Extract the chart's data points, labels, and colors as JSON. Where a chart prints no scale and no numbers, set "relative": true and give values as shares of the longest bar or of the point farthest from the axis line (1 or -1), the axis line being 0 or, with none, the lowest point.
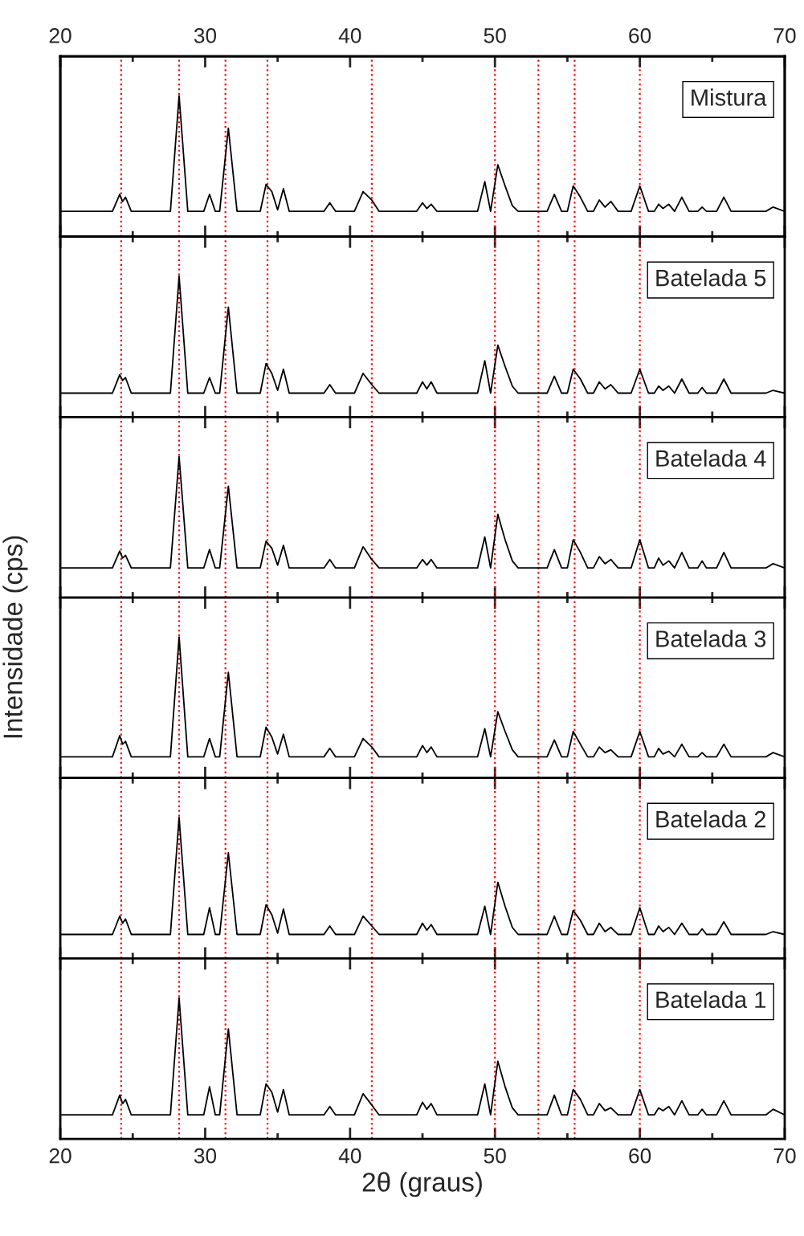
{
  "chart_data": [
    {
      "type": "line",
      "relative": true,
      "xlim": [
        20,
        70
      ],
      "xticks": [
        20,
        30,
        40,
        50,
        60,
        70
      ],
      "x2lim": [
        20,
        70
      ],
      "x2ticks": [
        20,
        30,
        40,
        50,
        60,
        70
      ],
      "tick_labels": false,
      "annotations": [
        "Mistura"
      ],
      "ref_lines": [
        {
          "axis": "x",
          "value": 24.2,
          "color": "#ff0000",
          "line_style": "dotted"
        },
        {
          "axis": "x",
          "value": 28.2,
          "color": "#ff0000",
          "line_style": "dotted"
        },
        {
          "axis": "x",
          "value": 31.4,
          "color": "#ff0000",
          "line_style": "dotted"
        },
        {
          "axis": "x",
          "value": 34.3,
          "color": "#ff0000",
          "line_style": "dotted"
        },
        {
          "axis": "x",
          "value": 41.5,
          "color": "#ff0000",
          "line_style": "dotted"
        },
        {
          "axis": "x",
          "value": 50.0,
          "color": "#ff0000",
          "line_style": "dotted"
        },
        {
          "axis": "x",
          "value": 53.0,
          "color": "#ff0000",
          "line_style": "dotted"
        },
        {
          "axis": "x",
          "value": 55.5,
          "color": "#ff0000",
          "line_style": "dotted"
        },
        {
          "axis": "x",
          "value": 60.0,
          "color": "#ff0000",
          "line_style": "dotted"
        }
      ],
      "x": [
        20,
        23.6,
        24.1,
        24.3,
        24.5,
        24.9,
        27.6,
        28.2,
        28.8,
        29.9,
        30.3,
        30.7,
        31.0,
        31.6,
        32.2,
        33.8,
        34.2,
        34.6,
        35.0,
        35.4,
        35.8,
        38.2,
        38.6,
        39.0,
        40.3,
        40.9,
        41.5,
        42.0,
        44.6,
        45.0,
        45.3,
        45.6,
        46.0,
        48.8,
        49.3,
        49.7,
        50.2,
        50.7,
        51.2,
        51.6,
        53.6,
        54.1,
        54.6,
        55.0,
        55.4,
        55.9,
        56.4,
        56.8,
        57.2,
        57.6,
        58.0,
        58.5,
        59.4,
        60.0,
        60.6,
        61.0,
        61.3,
        61.6,
        62.0,
        62.4,
        62.9,
        63.4,
        64.0,
        64.3,
        64.6,
        65.3,
        65.8,
        66.3,
        68.7,
        69.2,
        70
      ],
      "series": [
        {
          "color": "#000000",
          "values": [
            0.18,
            0.18,
            0.3,
            0.25,
            0.28,
            0.18,
            0.18,
            1.0,
            0.18,
            0.18,
            0.3,
            0.18,
            0.18,
            0.77,
            0.18,
            0.18,
            0.37,
            0.32,
            0.19,
            0.34,
            0.18,
            0.18,
            0.24,
            0.18,
            0.18,
            0.32,
            0.26,
            0.18,
            0.18,
            0.24,
            0.2,
            0.23,
            0.18,
            0.18,
            0.39,
            0.18,
            0.51,
            0.36,
            0.22,
            0.18,
            0.18,
            0.3,
            0.18,
            0.18,
            0.36,
            0.28,
            0.18,
            0.18,
            0.26,
            0.21,
            0.25,
            0.18,
            0.18,
            0.36,
            0.18,
            0.18,
            0.23,
            0.2,
            0.23,
            0.18,
            0.28,
            0.18,
            0.18,
            0.21,
            0.18,
            0.18,
            0.28,
            0.18,
            0.18,
            0.21,
            0.18
          ]
        }
      ]
    },
    {
      "type": "line",
      "relative": true,
      "xlim": [
        20,
        70
      ],
      "xticks": [
        20,
        30,
        40,
        50,
        60,
        70
      ],
      "tick_labels": false,
      "annotations": [
        "Batelada 5"
      ],
      "ref_lines": [
        {
          "axis": "x",
          "value": 24.2,
          "color": "#ff0000",
          "line_style": "dotted"
        },
        {
          "axis": "x",
          "value": 28.2,
          "color": "#ff0000",
          "line_style": "dotted"
        },
        {
          "axis": "x",
          "value": 31.4,
          "color": "#ff0000",
          "line_style": "dotted"
        },
        {
          "axis": "x",
          "value": 34.3,
          "color": "#ff0000",
          "line_style": "dotted"
        },
        {
          "axis": "x",
          "value": 41.5,
          "color": "#ff0000",
          "line_style": "dotted"
        },
        {
          "axis": "x",
          "value": 50.0,
          "color": "#ff0000",
          "line_style": "dotted"
        },
        {
          "axis": "x",
          "value": 53.0,
          "color": "#ff0000",
          "line_style": "dotted"
        },
        {
          "axis": "x",
          "value": 55.5,
          "color": "#ff0000",
          "line_style": "dotted"
        },
        {
          "axis": "x",
          "value": 60.0,
          "color": "#ff0000",
          "line_style": "dotted"
        }
      ],
      "x": [
        20,
        23.6,
        24.1,
        24.3,
        24.5,
        24.9,
        27.6,
        28.2,
        28.8,
        29.9,
        30.3,
        30.7,
        31.0,
        31.6,
        32.2,
        33.8,
        34.2,
        34.6,
        35.0,
        35.4,
        35.8,
        38.2,
        38.6,
        39.0,
        40.3,
        40.9,
        41.5,
        42.0,
        44.6,
        45.0,
        45.3,
        45.6,
        46.0,
        48.8,
        49.3,
        49.7,
        50.2,
        50.7,
        51.2,
        51.6,
        53.6,
        54.1,
        54.6,
        55.0,
        55.4,
        55.9,
        56.4,
        56.8,
        57.2,
        57.6,
        58.0,
        58.5,
        59.4,
        60.0,
        60.6,
        61.0,
        61.3,
        61.6,
        62.0,
        62.4,
        62.9,
        63.4,
        64.0,
        64.3,
        64.6,
        65.3,
        65.8,
        66.3,
        68.7,
        69.2,
        70
      ],
      "series": [
        {
          "color": "#000000",
          "values": [
            0.17,
            0.17,
            0.3,
            0.26,
            0.28,
            0.17,
            0.17,
            1.0,
            0.17,
            0.17,
            0.28,
            0.17,
            0.17,
            0.78,
            0.17,
            0.17,
            0.38,
            0.31,
            0.19,
            0.34,
            0.17,
            0.17,
            0.23,
            0.17,
            0.17,
            0.31,
            0.23,
            0.17,
            0.17,
            0.25,
            0.2,
            0.25,
            0.17,
            0.17,
            0.4,
            0.17,
            0.51,
            0.36,
            0.22,
            0.17,
            0.17,
            0.29,
            0.17,
            0.17,
            0.34,
            0.27,
            0.17,
            0.17,
            0.25,
            0.2,
            0.23,
            0.17,
            0.17,
            0.34,
            0.17,
            0.17,
            0.22,
            0.19,
            0.22,
            0.17,
            0.27,
            0.17,
            0.17,
            0.21,
            0.17,
            0.17,
            0.27,
            0.17,
            0.17,
            0.19,
            0.17
          ]
        }
      ]
    },
    {
      "type": "line",
      "relative": true,
      "xlim": [
        20,
        70
      ],
      "xticks": [
        20,
        30,
        40,
        50,
        60,
        70
      ],
      "tick_labels": false,
      "annotations": [
        "Batelada 4"
      ],
      "ref_lines": [
        {
          "axis": "x",
          "value": 24.2,
          "color": "#ff0000",
          "line_style": "dotted"
        },
        {
          "axis": "x",
          "value": 28.2,
          "color": "#ff0000",
          "line_style": "dotted"
        },
        {
          "axis": "x",
          "value": 31.4,
          "color": "#ff0000",
          "line_style": "dotted"
        },
        {
          "axis": "x",
          "value": 34.3,
          "color": "#ff0000",
          "line_style": "dotted"
        },
        {
          "axis": "x",
          "value": 41.5,
          "color": "#ff0000",
          "line_style": "dotted"
        },
        {
          "axis": "x",
          "value": 50.0,
          "color": "#ff0000",
          "line_style": "dotted"
        },
        {
          "axis": "x",
          "value": 53.0,
          "color": "#ff0000",
          "line_style": "dotted"
        },
        {
          "axis": "x",
          "value": 55.5,
          "color": "#ff0000",
          "line_style": "dotted"
        },
        {
          "axis": "x",
          "value": 60.0,
          "color": "#ff0000",
          "line_style": "dotted"
        }
      ],
      "x": [
        20,
        23.6,
        24.1,
        24.3,
        24.5,
        24.9,
        27.6,
        28.2,
        28.8,
        29.9,
        30.3,
        30.7,
        31.0,
        31.6,
        32.2,
        33.8,
        34.2,
        34.6,
        35.0,
        35.4,
        35.8,
        38.2,
        38.6,
        39.0,
        40.3,
        40.9,
        41.5,
        42.0,
        44.6,
        45.0,
        45.3,
        45.6,
        46.0,
        48.8,
        49.3,
        49.7,
        50.2,
        50.7,
        51.2,
        51.6,
        53.6,
        54.1,
        54.6,
        55.0,
        55.4,
        55.9,
        56.4,
        56.8,
        57.2,
        57.6,
        58.0,
        58.5,
        59.4,
        60.0,
        60.6,
        61.0,
        61.3,
        61.6,
        62.0,
        62.4,
        62.9,
        63.4,
        64.0,
        64.3,
        64.6,
        65.3,
        65.8,
        66.3,
        68.7,
        69.2,
        70
      ],
      "series": [
        {
          "color": "#000000",
          "values": [
            0.21,
            0.21,
            0.33,
            0.28,
            0.3,
            0.21,
            0.21,
            1.0,
            0.21,
            0.21,
            0.34,
            0.21,
            0.21,
            0.79,
            0.21,
            0.21,
            0.4,
            0.35,
            0.23,
            0.37,
            0.21,
            0.21,
            0.27,
            0.21,
            0.21,
            0.36,
            0.27,
            0.21,
            0.21,
            0.27,
            0.23,
            0.27,
            0.21,
            0.21,
            0.43,
            0.21,
            0.59,
            0.41,
            0.26,
            0.21,
            0.21,
            0.34,
            0.21,
            0.21,
            0.41,
            0.32,
            0.21,
            0.21,
            0.29,
            0.24,
            0.27,
            0.21,
            0.21,
            0.41,
            0.21,
            0.21,
            0.28,
            0.23,
            0.26,
            0.21,
            0.32,
            0.21,
            0.21,
            0.26,
            0.21,
            0.21,
            0.32,
            0.21,
            0.21,
            0.24,
            0.21
          ]
        }
      ]
    },
    {
      "type": "line",
      "relative": true,
      "xlim": [
        20,
        70
      ],
      "xticks": [
        20,
        30,
        40,
        50,
        60,
        70
      ],
      "tick_labels": false,
      "ylabel": "Intensidade (cps)",
      "annotations": [
        "Batelada 3"
      ],
      "ref_lines": [
        {
          "axis": "x",
          "value": 24.2,
          "color": "#ff0000",
          "line_style": "dotted"
        },
        {
          "axis": "x",
          "value": 28.2,
          "color": "#ff0000",
          "line_style": "dotted"
        },
        {
          "axis": "x",
          "value": 31.4,
          "color": "#ff0000",
          "line_style": "dotted"
        },
        {
          "axis": "x",
          "value": 34.3,
          "color": "#ff0000",
          "line_style": "dotted"
        },
        {
          "axis": "x",
          "value": 41.5,
          "color": "#ff0000",
          "line_style": "dotted"
        },
        {
          "axis": "x",
          "value": 50.0,
          "color": "#ff0000",
          "line_style": "dotted"
        },
        {
          "axis": "x",
          "value": 53.0,
          "color": "#ff0000",
          "line_style": "dotted"
        },
        {
          "axis": "x",
          "value": 55.5,
          "color": "#ff0000",
          "line_style": "dotted"
        },
        {
          "axis": "x",
          "value": 60.0,
          "color": "#ff0000",
          "line_style": "dotted"
        }
      ],
      "x": [
        20,
        23.6,
        24.1,
        24.3,
        24.5,
        24.9,
        27.6,
        28.2,
        28.8,
        29.9,
        30.3,
        30.7,
        31.0,
        31.6,
        32.2,
        33.8,
        34.2,
        34.6,
        35.0,
        35.4,
        35.8,
        38.2,
        38.6,
        39.0,
        40.3,
        40.9,
        41.5,
        42.0,
        44.6,
        45.0,
        45.3,
        45.6,
        46.0,
        48.8,
        49.3,
        49.7,
        50.2,
        50.7,
        51.2,
        51.6,
        53.6,
        54.1,
        54.6,
        55.0,
        55.4,
        55.9,
        56.4,
        56.8,
        57.2,
        57.6,
        58.0,
        58.5,
        59.4,
        60.0,
        60.6,
        61.0,
        61.3,
        61.6,
        62.0,
        62.4,
        62.9,
        63.4,
        64.0,
        64.3,
        64.6,
        65.3,
        65.8,
        66.3,
        68.7,
        69.2,
        70
      ],
      "series": [
        {
          "color": "#000000",
          "values": [
            0.15,
            0.15,
            0.3,
            0.24,
            0.26,
            0.15,
            0.15,
            1.0,
            0.15,
            0.15,
            0.28,
            0.15,
            0.15,
            0.75,
            0.15,
            0.15,
            0.36,
            0.29,
            0.17,
            0.31,
            0.15,
            0.15,
            0.21,
            0.15,
            0.15,
            0.28,
            0.22,
            0.15,
            0.15,
            0.23,
            0.18,
            0.22,
            0.15,
            0.15,
            0.35,
            0.15,
            0.47,
            0.33,
            0.2,
            0.15,
            0.15,
            0.27,
            0.15,
            0.15,
            0.33,
            0.24,
            0.15,
            0.15,
            0.22,
            0.18,
            0.2,
            0.15,
            0.15,
            0.33,
            0.15,
            0.15,
            0.21,
            0.17,
            0.19,
            0.15,
            0.24,
            0.15,
            0.15,
            0.18,
            0.15,
            0.15,
            0.24,
            0.15,
            0.15,
            0.18,
            0.15
          ]
        }
      ]
    },
    {
      "type": "line",
      "relative": true,
      "xlim": [
        20,
        70
      ],
      "xticks": [
        20,
        30,
        40,
        50,
        60,
        70
      ],
      "tick_labels": false,
      "annotations": [
        "Batelada 2"
      ],
      "ref_lines": [
        {
          "axis": "x",
          "value": 24.2,
          "color": "#ff0000",
          "line_style": "dotted"
        },
        {
          "axis": "x",
          "value": 28.2,
          "color": "#ff0000",
          "line_style": "dotted"
        },
        {
          "axis": "x",
          "value": 31.4,
          "color": "#ff0000",
          "line_style": "dotted"
        },
        {
          "axis": "x",
          "value": 34.3,
          "color": "#ff0000",
          "line_style": "dotted"
        },
        {
          "axis": "x",
          "value": 41.5,
          "color": "#ff0000",
          "line_style": "dotted"
        },
        {
          "axis": "x",
          "value": 50.0,
          "color": "#ff0000",
          "line_style": "dotted"
        },
        {
          "axis": "x",
          "value": 53.0,
          "color": "#ff0000",
          "line_style": "dotted"
        },
        {
          "axis": "x",
          "value": 55.5,
          "color": "#ff0000",
          "line_style": "dotted"
        },
        {
          "axis": "x",
          "value": 60.0,
          "color": "#ff0000",
          "line_style": "dotted"
        }
      ],
      "x": [
        20,
        23.6,
        24.1,
        24.3,
        24.5,
        24.9,
        27.6,
        28.2,
        28.8,
        29.9,
        30.3,
        30.7,
        31.0,
        31.6,
        32.2,
        33.8,
        34.2,
        34.6,
        35.0,
        35.4,
        35.8,
        38.2,
        38.6,
        39.0,
        40.3,
        40.9,
        41.5,
        42.0,
        44.6,
        45.0,
        45.3,
        45.6,
        46.0,
        48.8,
        49.3,
        49.7,
        50.2,
        50.7,
        51.2,
        51.6,
        53.6,
        54.1,
        54.6,
        55.0,
        55.4,
        55.9,
        56.4,
        56.8,
        57.2,
        57.6,
        58.0,
        58.5,
        59.4,
        60.0,
        60.6,
        61.0,
        61.3,
        61.6,
        62.0,
        62.4,
        62.9,
        63.4,
        64.0,
        64.3,
        64.6,
        65.3,
        65.8,
        66.3,
        68.7,
        69.2,
        70
      ],
      "series": [
        {
          "color": "#000000",
          "values": [
            0.17,
            0.17,
            0.3,
            0.25,
            0.28,
            0.17,
            0.17,
            1.0,
            0.17,
            0.17,
            0.36,
            0.17,
            0.17,
            0.75,
            0.17,
            0.17,
            0.38,
            0.31,
            0.18,
            0.35,
            0.17,
            0.17,
            0.23,
            0.17,
            0.17,
            0.3,
            0.23,
            0.17,
            0.17,
            0.25,
            0.2,
            0.24,
            0.17,
            0.17,
            0.37,
            0.17,
            0.54,
            0.37,
            0.22,
            0.17,
            0.17,
            0.3,
            0.17,
            0.17,
            0.34,
            0.27,
            0.17,
            0.17,
            0.25,
            0.19,
            0.22,
            0.17,
            0.17,
            0.36,
            0.17,
            0.17,
            0.23,
            0.19,
            0.22,
            0.17,
            0.25,
            0.17,
            0.17,
            0.21,
            0.17,
            0.17,
            0.26,
            0.17,
            0.17,
            0.19,
            0.17
          ]
        }
      ]
    },
    {
      "type": "line",
      "relative": true,
      "xlabel": "2θ (graus)",
      "xlim": [
        20,
        70
      ],
      "xticks": [
        20,
        30,
        40,
        50,
        60,
        70
      ],
      "tick_labels": "x",
      "annotations": [
        "Batelada 1"
      ],
      "ref_lines": [
        {
          "axis": "x",
          "value": 24.2,
          "color": "#ff0000",
          "line_style": "dotted"
        },
        {
          "axis": "x",
          "value": 28.2,
          "color": "#ff0000",
          "line_style": "dotted"
        },
        {
          "axis": "x",
          "value": 31.4,
          "color": "#ff0000",
          "line_style": "dotted"
        },
        {
          "axis": "x",
          "value": 34.3,
          "color": "#ff0000",
          "line_style": "dotted"
        },
        {
          "axis": "x",
          "value": 41.5,
          "color": "#ff0000",
          "line_style": "dotted"
        },
        {
          "axis": "x",
          "value": 50.0,
          "color": "#ff0000",
          "line_style": "dotted"
        },
        {
          "axis": "x",
          "value": 53.0,
          "color": "#ff0000",
          "line_style": "dotted"
        },
        {
          "axis": "x",
          "value": 55.5,
          "color": "#ff0000",
          "line_style": "dotted"
        },
        {
          "axis": "x",
          "value": 60.0,
          "color": "#ff0000",
          "line_style": "dotted"
        }
      ],
      "x": [
        20,
        23.6,
        24.1,
        24.3,
        24.5,
        24.9,
        27.6,
        28.2,
        28.8,
        29.9,
        30.3,
        30.7,
        31.0,
        31.6,
        32.2,
        33.8,
        34.2,
        34.6,
        35.0,
        35.4,
        35.8,
        38.2,
        38.6,
        39.0,
        40.3,
        40.9,
        41.5,
        42.0,
        44.6,
        45.0,
        45.3,
        45.6,
        46.0,
        48.8,
        49.3,
        49.7,
        50.2,
        50.7,
        51.2,
        51.6,
        53.6,
        54.1,
        54.6,
        55.0,
        55.4,
        55.9,
        56.4,
        56.8,
        57.2,
        57.6,
        58.0,
        58.5,
        59.4,
        60.0,
        60.6,
        61.0,
        61.3,
        61.6,
        62.0,
        62.4,
        62.9,
        63.4,
        64.0,
        64.3,
        64.6,
        65.3,
        65.8,
        66.3,
        68.7,
        69.2,
        70
      ],
      "series": [
        {
          "color": "#000000",
          "values": [
            0.17,
            0.17,
            0.31,
            0.25,
            0.28,
            0.17,
            0.17,
            1.0,
            0.17,
            0.17,
            0.37,
            0.17,
            0.17,
            0.78,
            0.17,
            0.17,
            0.39,
            0.33,
            0.19,
            0.35,
            0.17,
            0.17,
            0.23,
            0.17,
            0.17,
            0.32,
            0.24,
            0.17,
            0.17,
            0.26,
            0.21,
            0.25,
            0.17,
            0.17,
            0.39,
            0.17,
            0.55,
            0.37,
            0.22,
            0.17,
            0.17,
            0.31,
            0.17,
            0.17,
            0.35,
            0.28,
            0.17,
            0.17,
            0.25,
            0.2,
            0.22,
            0.17,
            0.17,
            0.35,
            0.17,
            0.17,
            0.22,
            0.2,
            0.23,
            0.17,
            0.27,
            0.17,
            0.17,
            0.21,
            0.17,
            0.17,
            0.27,
            0.17,
            0.17,
            0.21,
            0.17
          ]
        }
      ]
    }
  ]
}
